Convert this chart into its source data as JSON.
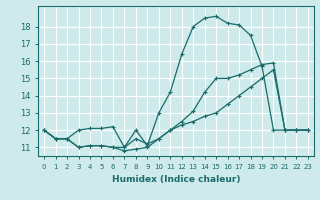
{
  "title": "",
  "xlabel": "Humidex (Indice chaleur)",
  "xlim": [
    -0.5,
    23.5
  ],
  "ylim": [
    10.5,
    19.2
  ],
  "yticks": [
    11,
    12,
    13,
    14,
    15,
    16,
    17,
    18
  ],
  "xticks": [
    0,
    1,
    2,
    3,
    4,
    5,
    6,
    7,
    8,
    9,
    10,
    11,
    12,
    13,
    14,
    15,
    16,
    17,
    18,
    19,
    20,
    21,
    22,
    23
  ],
  "bg_color": "#ceeaea",
  "grid_color": "#ffffff",
  "line_color": "#1a6b6b",
  "line1_x": [
    0,
    1,
    2,
    3,
    4,
    5,
    6,
    7,
    8,
    9,
    10,
    11,
    12,
    13,
    14,
    15,
    16,
    17,
    18,
    19,
    20,
    21,
    22,
    23
  ],
  "line1_y": [
    12.0,
    11.5,
    11.5,
    12.0,
    12.1,
    12.1,
    12.2,
    11.0,
    11.5,
    11.2,
    11.5,
    12.0,
    12.3,
    12.5,
    12.8,
    13.0,
    13.5,
    14.0,
    14.5,
    15.0,
    15.5,
    12.0,
    12.0,
    12.0
  ],
  "line2_x": [
    0,
    1,
    2,
    3,
    4,
    5,
    6,
    7,
    8,
    9,
    10,
    11,
    12,
    13,
    14,
    15,
    16,
    17,
    18,
    19,
    20,
    21,
    22,
    23
  ],
  "line2_y": [
    12.0,
    11.5,
    11.5,
    11.0,
    11.1,
    11.1,
    11.0,
    10.8,
    10.9,
    11.0,
    11.5,
    12.0,
    12.5,
    13.1,
    14.2,
    15.0,
    15.0,
    15.2,
    15.5,
    15.8,
    15.9,
    12.0,
    12.0,
    12.0
  ],
  "line3_x": [
    0,
    1,
    2,
    3,
    4,
    5,
    6,
    7,
    8,
    9,
    10,
    11,
    12,
    13,
    14,
    15,
    16,
    17,
    18,
    19,
    20,
    21,
    22,
    23
  ],
  "line3_y": [
    12.0,
    11.5,
    11.5,
    11.0,
    11.1,
    11.1,
    11.0,
    11.0,
    12.0,
    11.1,
    13.0,
    14.2,
    16.4,
    18.0,
    18.5,
    18.6,
    18.2,
    18.1,
    17.5,
    15.7,
    12.0,
    12.0,
    12.0,
    12.0
  ]
}
